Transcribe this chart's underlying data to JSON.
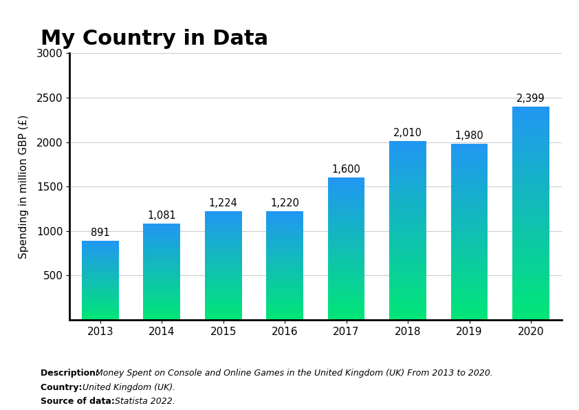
{
  "title": "My Country in Data",
  "ylabel": "Spending in million GBP (£)",
  "years": [
    "2013",
    "2014",
    "2015",
    "2016",
    "2017",
    "2018",
    "2019",
    "2020"
  ],
  "values": [
    891,
    1081,
    1224,
    1220,
    1600,
    2010,
    1980,
    2399
  ],
  "value_labels": [
    "891",
    "1,081",
    "1,224",
    "1,220",
    "1,600",
    "2,010",
    "1,980",
    "2,399"
  ],
  "ylim": [
    0,
    3000
  ],
  "yticks": [
    500,
    1000,
    1500,
    2000,
    2500,
    3000
  ],
  "color_top": "#2196F3",
  "color_bottom": "#00E676",
  "background_color": "#FFFFFF",
  "description": "Money Spent on Console and Online Games in the United Kingdom (UK) From 2013 to 2020.",
  "country": "United Kingdom (UK).",
  "source": "Statista 2022.",
  "title_fontsize": 22,
  "axis_label_fontsize": 11,
  "tick_fontsize": 11,
  "value_label_fontsize": 10.5
}
